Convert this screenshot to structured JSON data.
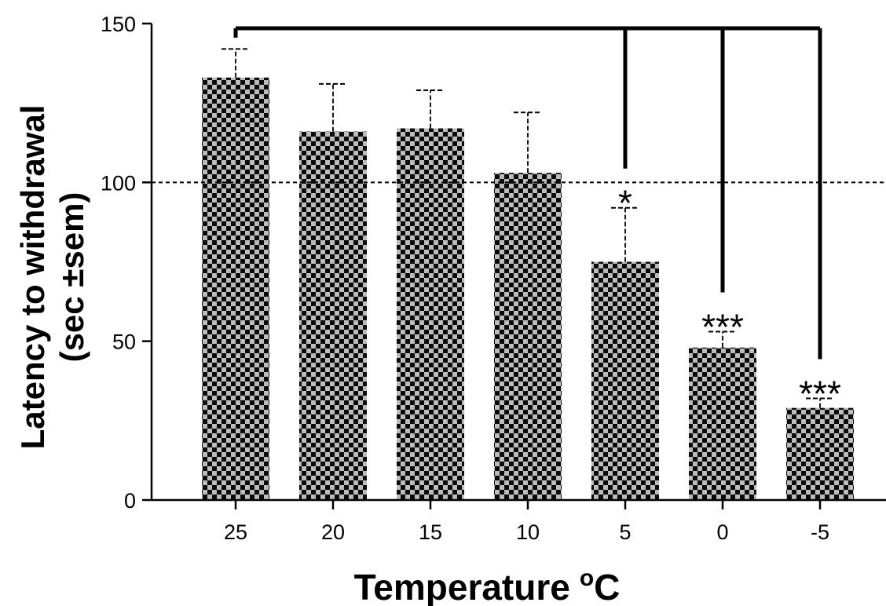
{
  "chart_data": {
    "type": "bar",
    "categories": [
      "25",
      "20",
      "15",
      "10",
      "5",
      "0",
      "-5"
    ],
    "values": [
      133,
      116,
      117,
      103,
      75,
      48,
      29
    ],
    "errors": [
      9,
      15,
      12,
      19,
      17,
      5,
      3
    ],
    "xlabel": "Temperature",
    "xlabel_unit": "oC",
    "ylabel_line1": "Latency to withdrawal",
    "ylabel_line2": "(sec ±sem)",
    "ylim": [
      0,
      150
    ],
    "yticks": [
      0,
      50,
      100,
      150
    ],
    "reference_line": 100,
    "significance": [
      {
        "category": "5",
        "label": "*"
      },
      {
        "category": "0",
        "label": "***"
      },
      {
        "category": "-5",
        "label": "***"
      }
    ],
    "comparison_bracket": {
      "from": "25",
      "to": [
        "5",
        "0",
        "-5"
      ]
    }
  }
}
